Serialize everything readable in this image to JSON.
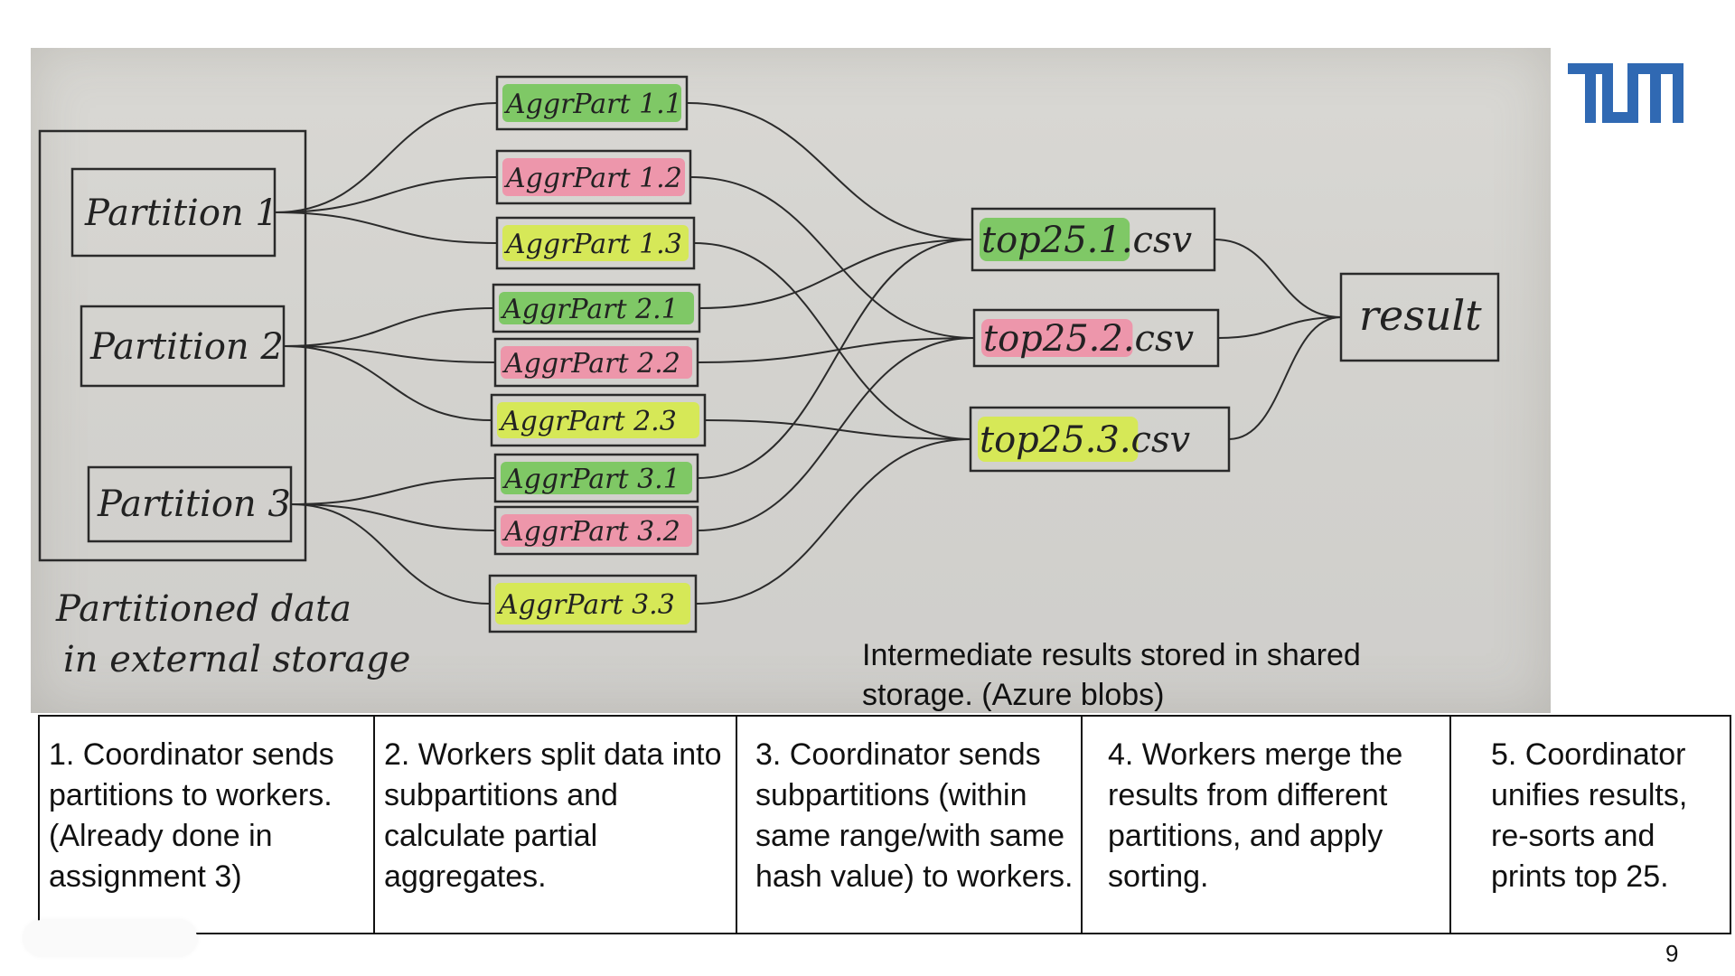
{
  "logo": {
    "text": "TUM",
    "color": "#3069b3"
  },
  "diagram": {
    "storage_label_line1": "Partitioned data",
    "storage_label_line2": "in external storage",
    "partitions": [
      "Partition 1",
      "Partition 2",
      "Partition 3"
    ],
    "aggregates": [
      {
        "label": "AggrPart 1.1",
        "highlight": "#76c65a"
      },
      {
        "label": "AggrPart 1.2",
        "highlight": "#f08fa6"
      },
      {
        "label": "AggrPart 1.3",
        "highlight": "#d6ea4a"
      },
      {
        "label": "AggrPart 2.1",
        "highlight": "#76c65a"
      },
      {
        "label": "AggrPart 2.2",
        "highlight": "#f08fa6"
      },
      {
        "label": "AggrPart 2.3",
        "highlight": "#d6ea4a"
      },
      {
        "label": "AggrPart 3.1",
        "highlight": "#76c65a"
      },
      {
        "label": "AggrPart 3.2",
        "highlight": "#f08fa6"
      },
      {
        "label": "AggrPart 3.3",
        "highlight": "#d6ea4a"
      }
    ],
    "merged": [
      {
        "label": "top25.1.csv",
        "highlight": "#76c65a"
      },
      {
        "label": "top25.2.csv",
        "highlight": "#f08fa6"
      },
      {
        "label": "top25.3.csv",
        "highlight": "#d6ea4a"
      }
    ],
    "result": "result",
    "caption": "Intermediate results stored in shared storage. (Azure blobs)"
  },
  "steps": [
    "1. Coordinator sends partitions to workers. (Already done in assignment 3)",
    "2. Workers split data into subpartitions and calculate partial aggregates.",
    "3. Coordinator sends subpartitions (within same range/with same hash value) to workers.",
    "4. Workers merge the results from different partitions, and apply sorting.",
    "5. Coordinator unifies results, re-sorts and prints top 25."
  ],
  "page_number": "9"
}
